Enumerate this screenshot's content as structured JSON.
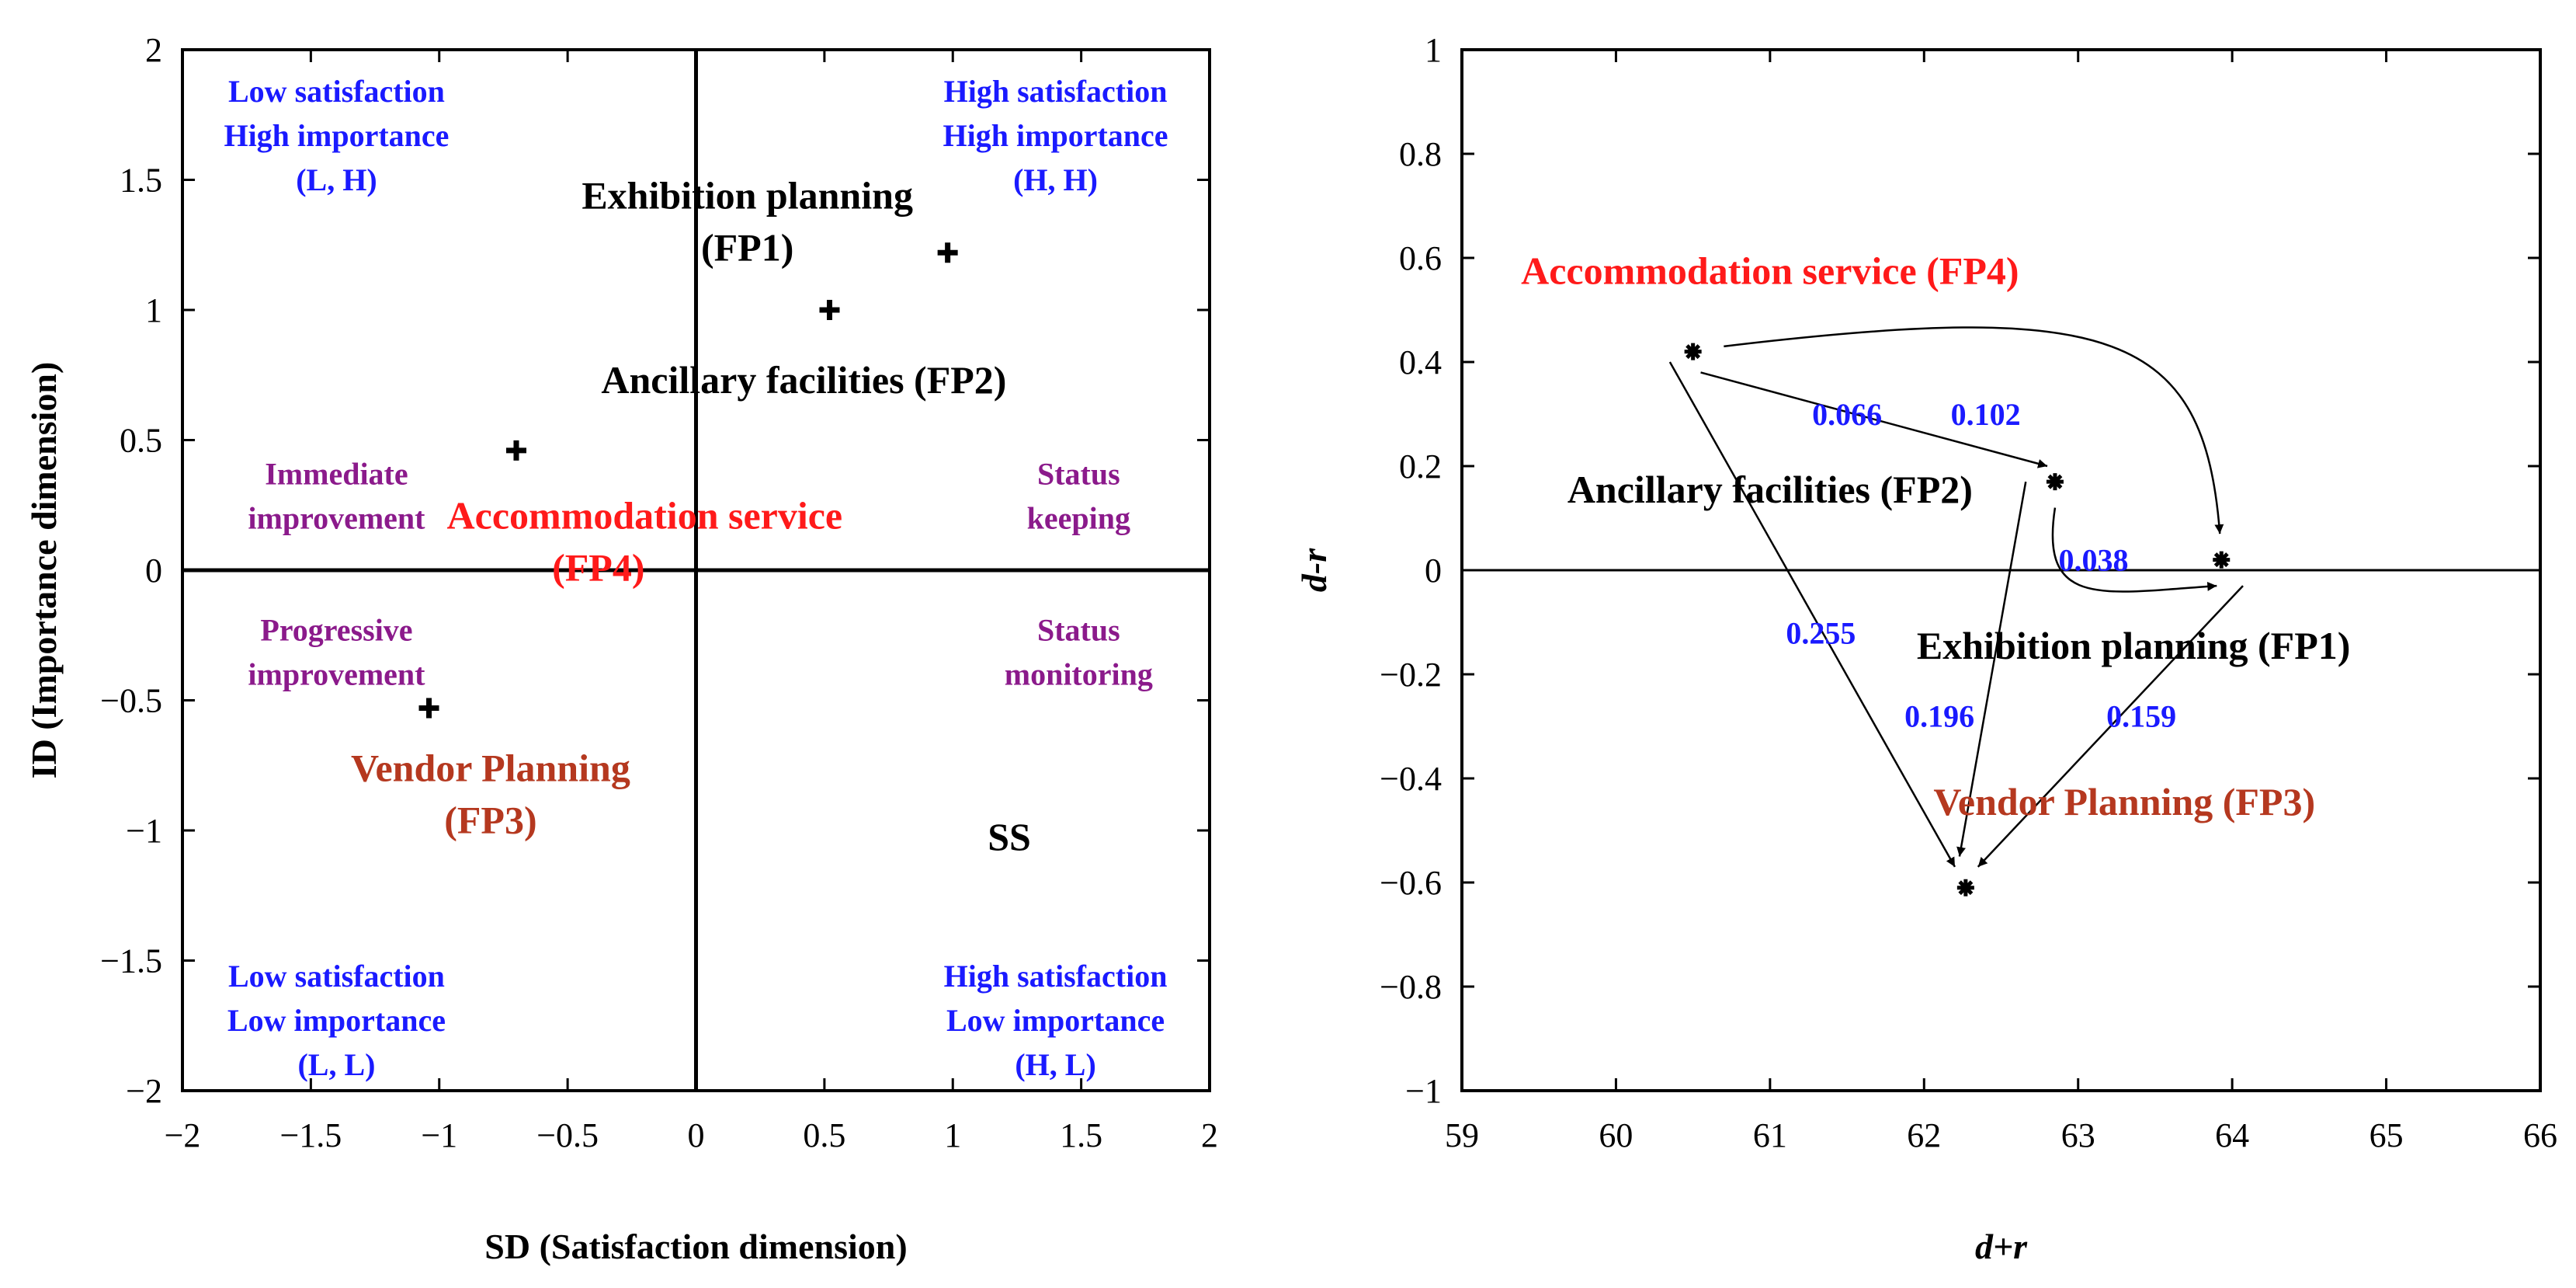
{
  "chart_data": [
    {
      "type": "scatter",
      "title": "",
      "xlabel": "SD (Satisfaction dimension)",
      "ylabel": "ID (Importance dimension)",
      "xlim": [
        -2,
        2
      ],
      "ylim": [
        -2,
        2
      ],
      "xticks": [
        -2,
        -1.5,
        -1,
        -0.5,
        0,
        0.5,
        1,
        1.5,
        2
      ],
      "yticks": [
        -2,
        -1.5,
        -1,
        -0.5,
        0,
        0.5,
        1,
        1.5,
        2
      ],
      "xtick_labels": [
        "−2",
        "−1.5",
        "−1",
        "−0.5",
        "0",
        "0.5",
        "1",
        "1.5",
        "2"
      ],
      "ytick_labels": [
        "−2",
        "−1.5",
        "−1",
        "−0.5",
        "0",
        "0.5",
        "1",
        "1.5",
        "2"
      ],
      "points": [
        {
          "x": 0.98,
          "y": 1.22
        },
        {
          "x": 0.52,
          "y": 1.0
        },
        {
          "x": -1.04,
          "y": -0.53
        },
        {
          "x": -0.7,
          "y": 0.46
        }
      ],
      "point_labels": [
        {
          "text": "Exhibition planning",
          "x": 0.2,
          "y": 1.39,
          "color": "#000000"
        },
        {
          "text": "(FP1)",
          "x": 0.2,
          "y": 1.19,
          "color": "#000000"
        },
        {
          "text": "Ancillary facilities (FP2)",
          "x": 0.42,
          "y": 0.68,
          "color": "#000000"
        },
        {
          "text": "Vendor Planning",
          "x": -0.8,
          "y": -0.81,
          "color": "#b5381f"
        },
        {
          "text": "(FP3)",
          "x": -0.8,
          "y": -1.01,
          "color": "#b5381f"
        },
        {
          "text": "Accommodation service",
          "x": -0.2,
          "y": 0.16,
          "color": "#ff1a1a"
        },
        {
          "text": "(FP4)",
          "x": -0.38,
          "y": -0.04,
          "color": "#ff1a1a"
        }
      ],
      "quadrant_labels": [
        {
          "lines": [
            "Low satisfaction",
            "High importance",
            "(L, H)"
          ],
          "x": -1.4,
          "y": 1.8,
          "color": "#1a1aff"
        },
        {
          "lines": [
            "High satisfaction",
            "High importance",
            "(H, H)"
          ],
          "x": 1.4,
          "y": 1.8,
          "color": "#1a1aff"
        },
        {
          "lines": [
            "Low satisfaction",
            "Low importance",
            "(L, L)"
          ],
          "x": -1.4,
          "y": -1.6,
          "color": "#1a1aff"
        },
        {
          "lines": [
            "High satisfaction",
            "Low importance",
            "(H, L)"
          ],
          "x": 1.4,
          "y": -1.6,
          "color": "#1a1aff"
        },
        {
          "lines": [
            "Immediate",
            "improvement"
          ],
          "x": -1.4,
          "y": 0.33,
          "color": "#8b1a8b"
        },
        {
          "lines": [
            "Status",
            "keeping"
          ],
          "x": 1.49,
          "y": 0.33,
          "color": "#8b1a8b"
        },
        {
          "lines": [
            "Progressive",
            "improvement"
          ],
          "x": -1.4,
          "y": -0.27,
          "color": "#8b1a8b"
        },
        {
          "lines": [
            "Status",
            "monitoring"
          ],
          "x": 1.49,
          "y": -0.27,
          "color": "#8b1a8b"
        }
      ],
      "annotations": [
        {
          "text": "SS",
          "x": 1.22,
          "y": -1.03,
          "color": "#000000"
        }
      ]
    },
    {
      "type": "scatter",
      "title": "",
      "xlabel": "d+r",
      "ylabel": "d-r",
      "xlim": [
        59,
        66
      ],
      "ylim": [
        -1,
        1
      ],
      "xticks": [
        59,
        60,
        61,
        62,
        63,
        64,
        65,
        66
      ],
      "yticks": [
        -1,
        -0.8,
        -0.6,
        -0.4,
        -0.2,
        0,
        0.2,
        0.4,
        0.6,
        0.8,
        1
      ],
      "xtick_labels": [
        "59",
        "60",
        "61",
        "62",
        "63",
        "64",
        "65",
        "66"
      ],
      "ytick_labels": [
        "−1",
        "−0.8",
        "−0.6",
        "−0.4",
        "−0.2",
        "0",
        "0.2",
        "0.4",
        "0.6",
        "0.8",
        "1"
      ],
      "points": [
        {
          "x": 63.93,
          "y": 0.02
        },
        {
          "x": 62.85,
          "y": 0.17
        },
        {
          "x": 62.27,
          "y": -0.61
        },
        {
          "x": 60.5,
          "y": 0.42
        }
      ],
      "point_labels": [
        {
          "text": "Accommodation service (FP4)",
          "x": 61.0,
          "y": 0.55,
          "color": "#ff1a1a"
        },
        {
          "text": "Ancillary facilities (FP2)",
          "x": 61.0,
          "y": 0.13,
          "color": "#000000"
        },
        {
          "text": "Exhibition planning (FP1)",
          "x": 63.36,
          "y": -0.17,
          "color": "#000000"
        },
        {
          "text": "Vendor Planning (FP3)",
          "x": 63.3,
          "y": -0.47,
          "color": "#b5381f"
        }
      ],
      "edges": [
        {
          "from": [
            60.55,
            0.38
          ],
          "to": [
            62.8,
            0.2
          ],
          "label": "0.066",
          "lx": 61.5,
          "ly": 0.3,
          "curve": 0
        },
        {
          "from": [
            60.7,
            0.43
          ],
          "to": [
            63.92,
            0.07
          ],
          "label": "0.102",
          "lx": 62.4,
          "ly": 0.3,
          "curve": 1
        },
        {
          "from": [
            62.85,
            0.12
          ],
          "to": [
            63.9,
            -0.03
          ],
          "label": "0.038",
          "lx": 63.1,
          "ly": 0.02,
          "curve": 2
        },
        {
          "from": [
            60.35,
            0.4
          ],
          "to": [
            62.2,
            -0.57
          ],
          "label": "0.255",
          "lx": 61.33,
          "ly": -0.12,
          "curve": 0
        },
        {
          "from": [
            62.66,
            0.17
          ],
          "to": [
            62.23,
            -0.55
          ],
          "label": "0.196",
          "lx": 62.1,
          "ly": -0.28,
          "curve": 0
        },
        {
          "from": [
            64.07,
            -0.03
          ],
          "to": [
            62.35,
            -0.57
          ],
          "label": "0.159",
          "lx": 63.41,
          "ly": -0.28,
          "curve": 0
        }
      ]
    }
  ]
}
